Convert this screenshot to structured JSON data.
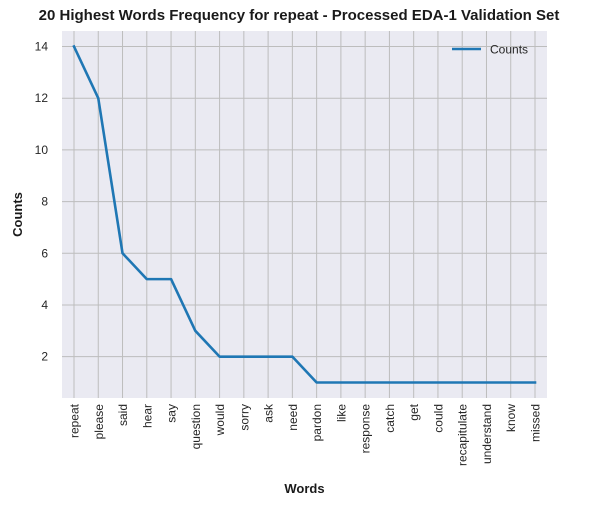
{
  "chart_data": {
    "type": "line",
    "title": "20 Highest Words Frequency for repeat - Processed EDA-1 Validation Set",
    "xlabel": "Words",
    "ylabel": "Counts",
    "categories": [
      "repeat",
      "please",
      "said",
      "hear",
      "say",
      "question",
      "would",
      "sorry",
      "ask",
      "need",
      "pardon",
      "like",
      "response",
      "catch",
      "get",
      "could",
      "recapitulate",
      "understand",
      "know",
      "missed"
    ],
    "series": [
      {
        "name": "Counts",
        "values": [
          14,
          12,
          6,
          5,
          5,
          3,
          2,
          2,
          2,
          2,
          1,
          1,
          1,
          1,
          1,
          1,
          1,
          1,
          1,
          1
        ]
      }
    ],
    "ylim": [
      0.4,
      14.6
    ],
    "yticks": [
      2,
      4,
      6,
      8,
      10,
      12,
      14
    ],
    "grid": true,
    "legend_position": "top-right",
    "line_color": "#1f77b4",
    "background_color": "#eaeaf2",
    "grid_color": "#bdbdbd"
  }
}
